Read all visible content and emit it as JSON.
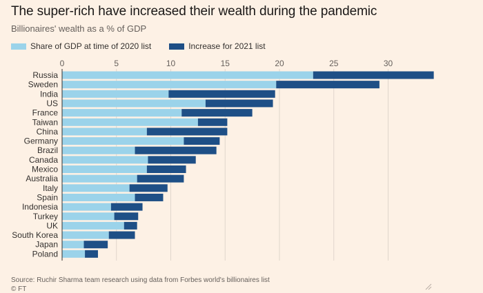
{
  "title": "The super-rich have increased their wealth during the pandemic",
  "subtitle": "Billionaires' wealth as a % of GDP",
  "legend": {
    "series_1": "Share of GDP at time of 2020 list",
    "series_2": "Increase for 2021 list"
  },
  "colors": {
    "series_1": "#9bd3ea",
    "series_2": "#1e4f86",
    "background": "#fdf1e5",
    "grid": "#e0d6cc"
  },
  "chart_data": {
    "type": "bar",
    "orientation": "horizontal",
    "stacked": true,
    "categories": [
      "Russia",
      "Sweden",
      "India",
      "US",
      "France",
      "Taiwan",
      "China",
      "Germany",
      "Brazil",
      "Canada",
      "Mexico",
      "Australia",
      "Italy",
      "Spain",
      "Indonesia",
      "Turkey",
      "UK",
      "South Korea",
      "Japan",
      "Poland"
    ],
    "series": [
      {
        "name": "Share of GDP at time of 2020 list",
        "values": [
          23.1,
          19.7,
          9.8,
          13.2,
          11.0,
          12.5,
          7.8,
          11.2,
          6.7,
          7.9,
          7.8,
          6.9,
          6.2,
          6.7,
          4.5,
          4.8,
          5.7,
          4.3,
          2.0,
          2.1
        ]
      },
      {
        "name": "Increase for 2021 list",
        "values": [
          11.1,
          9.5,
          9.8,
          6.2,
          6.5,
          2.7,
          7.4,
          3.3,
          7.5,
          4.4,
          3.6,
          4.3,
          3.5,
          2.6,
          2.9,
          2.2,
          1.2,
          2.4,
          2.2,
          1.2
        ]
      }
    ],
    "xlim": [
      0,
      34
    ],
    "xticks": [
      0,
      5,
      10,
      15,
      20,
      25,
      30
    ],
    "grid": true,
    "legend_position": "top-left"
  },
  "footer": {
    "source": "Source: Ruchir Sharma team research using data from Forbes world's billionaires list",
    "credit": "© FT"
  }
}
